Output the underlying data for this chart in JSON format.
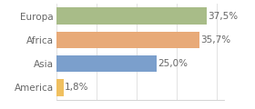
{
  "categories": [
    "America",
    "Asia",
    "Africa",
    "Europa"
  ],
  "values": [
    1.8,
    25.0,
    35.7,
    37.5
  ],
  "bar_colors": [
    "#f0c060",
    "#7b9fcc",
    "#e8aa78",
    "#a8bc88"
  ],
  "labels": [
    "1,8%",
    "25,0%",
    "35,7%",
    "37,5%"
  ],
  "xlim": [
    0,
    42
  ],
  "background_color": "#ffffff",
  "label_fontsize": 7.5,
  "tick_fontsize": 7.5,
  "bar_height": 0.72
}
